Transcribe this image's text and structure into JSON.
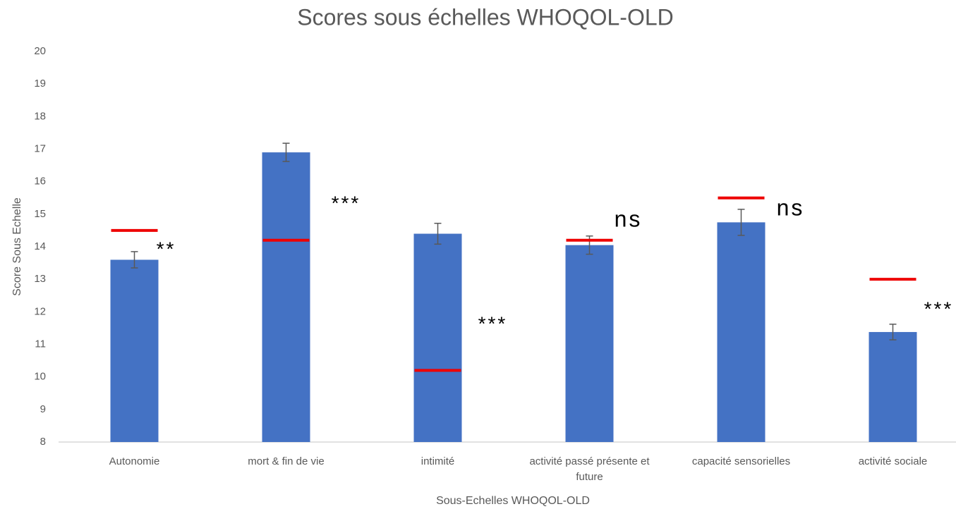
{
  "chart_data": {
    "type": "bar",
    "title": "Scores sous échelles WHOQOL-OLD",
    "x_label": "Sous-Echelles WHOQOL-OLD",
    "y_label": "Score Sous Echelle",
    "categories": [
      "Autonomie",
      "mort & fin de vie",
      "intimité",
      "activité passé présente et future",
      "capacité sensorielles",
      "activité sociale"
    ],
    "values": [
      13.6,
      16.9,
      14.4,
      14.05,
      14.75,
      11.38
    ],
    "errors": [
      0.25,
      0.28,
      0.32,
      0.28,
      0.4,
      0.24
    ],
    "reference": [
      14.5,
      14.2,
      10.2,
      14.2,
      15.5,
      13.0
    ],
    "annotations": [
      "**",
      "***",
      "***",
      "ns",
      "ns",
      "***"
    ],
    "color": "#4472c4",
    "reference_color": "#ee0000",
    "error_color": "#595959",
    "ylim": [
      8,
      20
    ],
    "yticks": [
      8,
      9,
      10,
      11,
      12,
      13,
      14,
      15,
      16,
      17,
      18,
      19,
      20
    ],
    "grid": false
  }
}
